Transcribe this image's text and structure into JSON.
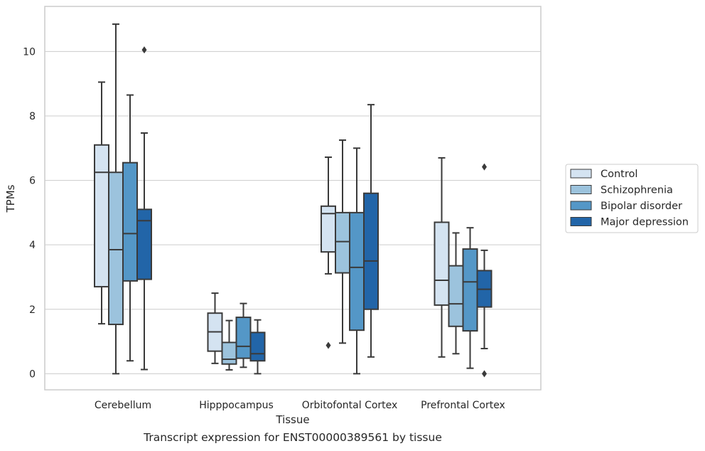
{
  "caption": "Transcript expression for ENST00000389561 by tissue",
  "chart_data": {
    "type": "box",
    "xlabel": "Tissue",
    "ylabel": "TPMs",
    "ylim": [
      -0.5,
      11.4
    ],
    "yticks": [
      0,
      2,
      4,
      6,
      8,
      10
    ],
    "grid": "horizontal",
    "legend_position": "right",
    "categories": [
      "Cerebellum",
      "Hipppocampus",
      "Orbitofontal Cortex",
      "Prefrontal Cortex"
    ],
    "series": [
      {
        "name": "Control",
        "color": "#d4e3f1",
        "boxes": [
          {
            "whislo": 1.55,
            "q1": 2.7,
            "med": 6.25,
            "q3": 7.1,
            "whishi": 9.05,
            "fliers": []
          },
          {
            "whislo": 0.32,
            "q1": 0.7,
            "med": 1.3,
            "q3": 1.88,
            "whishi": 2.5,
            "fliers": []
          },
          {
            "whislo": 3.1,
            "q1": 3.78,
            "med": 4.97,
            "q3": 5.2,
            "whishi": 6.72,
            "fliers": [
              0.88
            ]
          },
          {
            "whislo": 0.52,
            "q1": 2.13,
            "med": 2.9,
            "q3": 4.7,
            "whishi": 6.7,
            "fliers": []
          }
        ]
      },
      {
        "name": "Schizophrenia",
        "color": "#9cc3dd",
        "boxes": [
          {
            "whislo": 0.0,
            "q1": 1.53,
            "med": 3.85,
            "q3": 6.25,
            "whishi": 10.85,
            "fliers": []
          },
          {
            "whislo": 0.12,
            "q1": 0.3,
            "med": 0.45,
            "q3": 0.97,
            "whishi": 1.65,
            "fliers": []
          },
          {
            "whislo": 0.95,
            "q1": 3.13,
            "med": 4.1,
            "q3": 5.0,
            "whishi": 7.25,
            "fliers": []
          },
          {
            "whislo": 0.62,
            "q1": 1.47,
            "med": 2.17,
            "q3": 3.35,
            "whishi": 4.37,
            "fliers": []
          }
        ]
      },
      {
        "name": "Bipolar disorder",
        "color": "#5497c7",
        "boxes": [
          {
            "whislo": 0.4,
            "q1": 2.88,
            "med": 4.35,
            "q3": 6.55,
            "whishi": 8.65,
            "fliers": []
          },
          {
            "whislo": 0.2,
            "q1": 0.48,
            "med": 0.85,
            "q3": 1.75,
            "whishi": 2.18,
            "fliers": []
          },
          {
            "whislo": 0.0,
            "q1": 1.35,
            "med": 3.3,
            "q3": 5.0,
            "whishi": 7.0,
            "fliers": []
          },
          {
            "whislo": 0.17,
            "q1": 1.33,
            "med": 2.85,
            "q3": 3.87,
            "whishi": 4.53,
            "fliers": []
          }
        ]
      },
      {
        "name": "Major depression",
        "color": "#2265a8",
        "boxes": [
          {
            "whislo": 0.13,
            "q1": 2.93,
            "med": 4.75,
            "q3": 5.1,
            "whishi": 7.47,
            "fliers": [
              10.05
            ]
          },
          {
            "whislo": 0.0,
            "q1": 0.4,
            "med": 0.62,
            "q3": 1.28,
            "whishi": 1.67,
            "fliers": []
          },
          {
            "whislo": 0.52,
            "q1": 2.0,
            "med": 3.5,
            "q3": 5.6,
            "whishi": 8.35,
            "fliers": []
          },
          {
            "whislo": 0.78,
            "q1": 2.07,
            "med": 2.62,
            "q3": 3.2,
            "whishi": 3.83,
            "fliers": [
              6.42,
              0.0
            ]
          }
        ]
      }
    ]
  }
}
